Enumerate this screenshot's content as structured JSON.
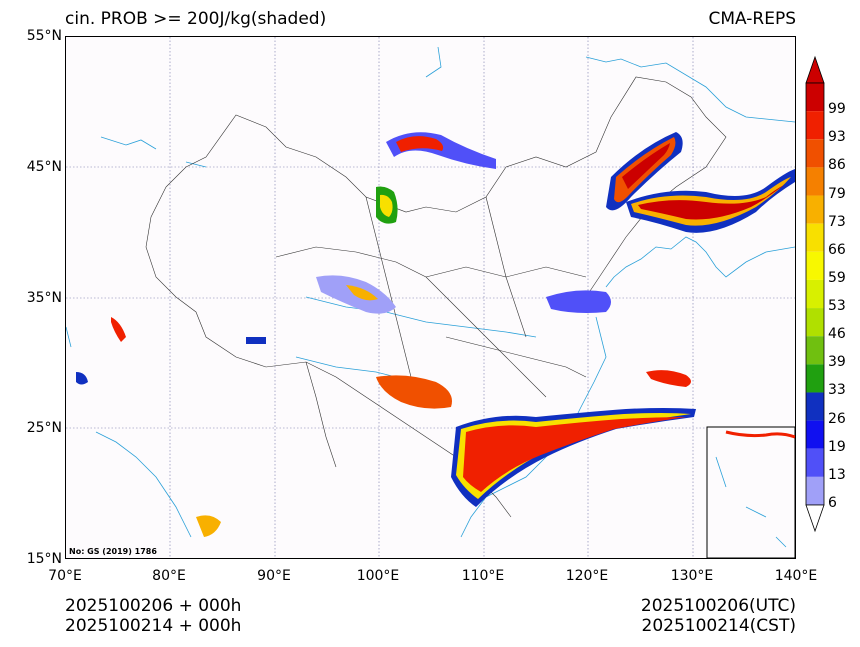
{
  "title": "cin. PROB >= 200J/kg(shaded)",
  "model": "CMA-REPS",
  "map": {
    "lat_labels": [
      "55°N",
      "45°N",
      "35°N",
      "25°N",
      "15°N"
    ],
    "lon_labels": [
      "70°E",
      "80°E",
      "90°E",
      "100°E",
      "110°E",
      "120°E",
      "130°E",
      "140°E"
    ],
    "lat_range": [
      15,
      55
    ],
    "lon_range": [
      70,
      140
    ],
    "gridlines": true,
    "inset": "bottom-right",
    "review_number": "No: GS (2019) 1786",
    "colors": {
      "coast": "#2aa0d8",
      "border": "#333333",
      "grid": "#777777"
    }
  },
  "colorbar": {
    "levels": [
      "99",
      "93",
      "86",
      "79",
      "73",
      "66",
      "59",
      "53",
      "46",
      "39",
      "33",
      "26",
      "19",
      "13",
      "6"
    ],
    "colors": [
      "#cc0000",
      "#f02000",
      "#f05000",
      "#f58000",
      "#f8b000",
      "#f8e000",
      "#f8f800",
      "#d8f000",
      "#b0e000",
      "#70c010",
      "#20a010",
      "#1030c0",
      "#1010f0",
      "#5050f8",
      "#a0a0f8"
    ]
  },
  "footer": {
    "left_line1": "2025100206  +  000h",
    "left_line2": "2025100214  +  000h",
    "right_line1": "2025100206(UTC)",
    "right_line2": "2025100214(CST)"
  }
}
